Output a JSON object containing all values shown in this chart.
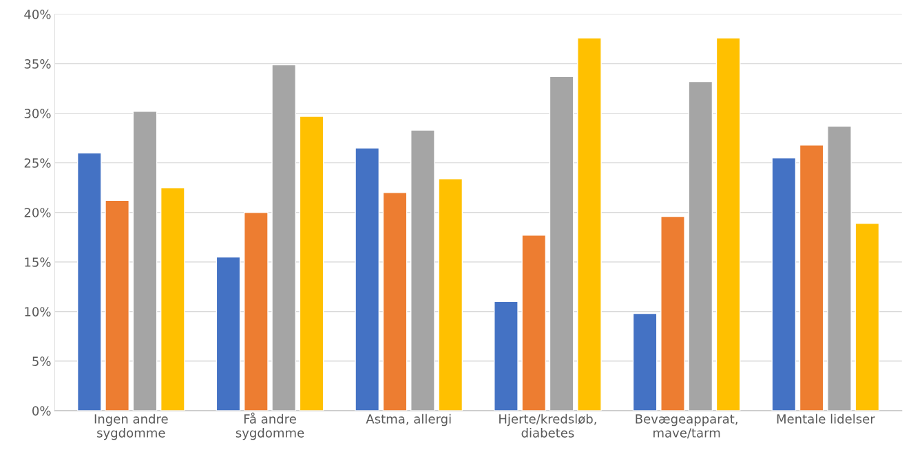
{
  "chart_data": {
    "type": "bar",
    "categories": [
      "Ingen andre\nsygdomme",
      "Få andre\nsygdomme",
      "Astma, allergi",
      "Hjerte/kredsløb,\ndiabetes",
      "Bevægeapparat,\nmave/tarm",
      "Mentale lidelser"
    ],
    "series": [
      {
        "color": "#4472c4",
        "values": [
          26.0,
          15.5,
          26.5,
          11.0,
          9.8,
          25.5
        ]
      },
      {
        "color": "#ed7d31",
        "values": [
          21.2,
          20.0,
          22.0,
          17.7,
          19.6,
          26.8
        ]
      },
      {
        "color": "#a5a5a5",
        "values": [
          30.2,
          34.9,
          28.3,
          33.7,
          33.2,
          28.7
        ]
      },
      {
        "color": "#ffc000",
        "values": [
          22.5,
          29.7,
          23.4,
          37.6,
          37.6,
          18.9
        ]
      }
    ],
    "ylim": [
      0,
      40
    ],
    "yticks": [
      {
        "value": 0,
        "label": "0%"
      },
      {
        "value": 5,
        "label": "5%"
      },
      {
        "value": 10,
        "label": "10%"
      },
      {
        "value": 15,
        "label": "15%"
      },
      {
        "value": 20,
        "label": "20%"
      },
      {
        "value": 25,
        "label": "25%"
      },
      {
        "value": 30,
        "label": "30%"
      },
      {
        "value": 35,
        "label": "35%"
      },
      {
        "value": 40,
        "label": "40%"
      }
    ],
    "grid": "y"
  }
}
